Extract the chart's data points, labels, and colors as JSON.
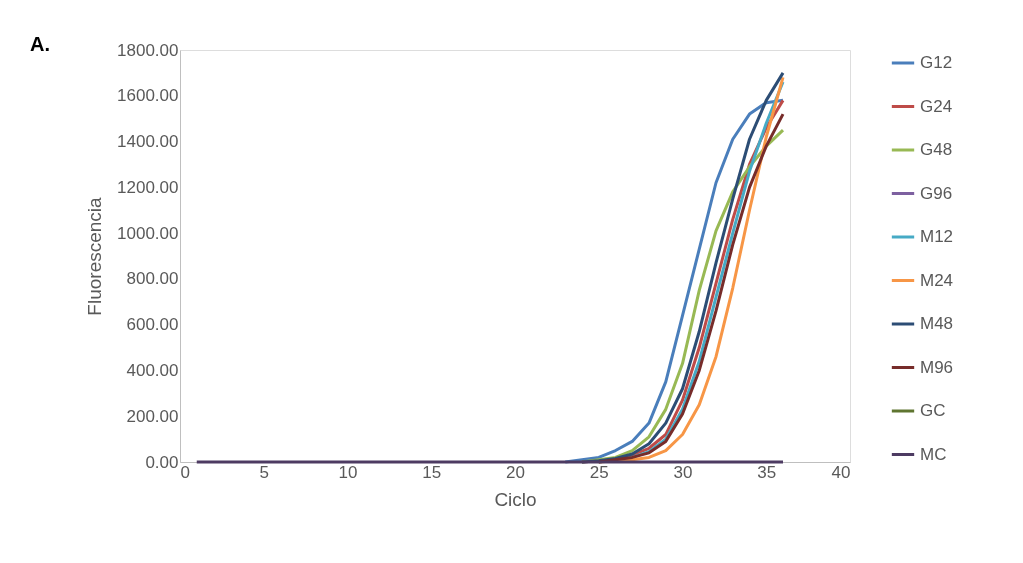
{
  "chart_data": {
    "type": "line",
    "xlabel": "Ciclo",
    "ylabel": "Fluorescencia",
    "annotations": [
      "A."
    ],
    "x": [
      1,
      2,
      3,
      4,
      5,
      6,
      7,
      8,
      9,
      10,
      11,
      12,
      13,
      14,
      15,
      16,
      17,
      18,
      19,
      20,
      21,
      22,
      23,
      24,
      25,
      26,
      27,
      28,
      29,
      30,
      31,
      32,
      33,
      34,
      35,
      36
    ],
    "series": [
      {
        "name": "G12",
        "color": "#4a7ebb",
        "values": [
          null,
          null,
          null,
          null,
          null,
          null,
          null,
          null,
          null,
          null,
          null,
          null,
          null,
          null,
          null,
          null,
          null,
          null,
          null,
          null,
          null,
          null,
          0,
          10,
          20,
          50,
          90,
          170,
          350,
          640,
          930,
          1220,
          1410,
          1520,
          1570,
          1580
        ]
      },
      {
        "name": "G24",
        "color": "#be4b48",
        "values": [
          null,
          null,
          null,
          null,
          null,
          null,
          null,
          null,
          null,
          null,
          null,
          null,
          null,
          null,
          null,
          null,
          null,
          null,
          null,
          null,
          null,
          null,
          null,
          0,
          5,
          15,
          30,
          60,
          120,
          270,
          500,
          780,
          1060,
          1300,
          1460,
          1580
        ]
      },
      {
        "name": "G48",
        "color": "#98b954",
        "values": [
          null,
          null,
          null,
          null,
          null,
          null,
          null,
          null,
          null,
          null,
          null,
          null,
          null,
          null,
          null,
          null,
          null,
          null,
          null,
          null,
          null,
          null,
          null,
          0,
          10,
          20,
          50,
          110,
          230,
          430,
          750,
          1010,
          1180,
          1290,
          1380,
          1450
        ]
      },
      {
        "name": "G96",
        "color": "#7d60a0",
        "values": [
          null,
          null,
          null,
          null,
          null,
          null,
          null,
          null,
          null,
          null,
          null,
          null,
          null,
          null,
          null,
          null,
          null,
          null,
          null,
          null,
          null,
          null,
          null,
          null,
          null,
          null,
          null,
          null,
          null,
          null,
          null,
          null,
          null,
          null,
          null,
          null
        ]
      },
      {
        "name": "M12",
        "color": "#46aac5",
        "values": [
          null,
          null,
          null,
          null,
          null,
          null,
          null,
          null,
          null,
          null,
          null,
          null,
          null,
          null,
          null,
          null,
          null,
          null,
          null,
          null,
          null,
          null,
          null,
          null,
          0,
          10,
          20,
          45,
          100,
          230,
          440,
          720,
          1000,
          1270,
          1480,
          1660
        ]
      },
      {
        "name": "M24",
        "color": "#f79646",
        "values": [
          null,
          null,
          null,
          null,
          null,
          null,
          null,
          null,
          null,
          null,
          null,
          null,
          null,
          null,
          null,
          null,
          null,
          null,
          null,
          null,
          null,
          null,
          null,
          null,
          0,
          5,
          10,
          20,
          50,
          120,
          250,
          460,
          760,
          1100,
          1420,
          1680
        ]
      },
      {
        "name": "M48",
        "color": "#2c4d75",
        "values": [
          null,
          null,
          null,
          null,
          null,
          null,
          null,
          null,
          null,
          null,
          null,
          null,
          null,
          null,
          null,
          null,
          null,
          null,
          null,
          null,
          null,
          null,
          null,
          0,
          5,
          15,
          35,
          80,
          170,
          320,
          570,
          870,
          1150,
          1410,
          1580,
          1700
        ]
      },
      {
        "name": "M96",
        "color": "#772c2a",
        "values": [
          null,
          null,
          null,
          null,
          null,
          null,
          null,
          null,
          null,
          null,
          null,
          null,
          null,
          null,
          null,
          null,
          null,
          null,
          null,
          null,
          null,
          null,
          null,
          null,
          0,
          10,
          20,
          40,
          90,
          210,
          400,
          660,
          950,
          1200,
          1380,
          1520
        ]
      },
      {
        "name": "GC",
        "color": "#5f7530",
        "values": [
          null,
          null,
          null,
          null,
          null,
          null,
          null,
          null,
          null,
          null,
          null,
          null,
          null,
          null,
          null,
          null,
          null,
          null,
          null,
          null,
          null,
          null,
          null,
          null,
          null,
          null,
          null,
          null,
          null,
          null,
          null,
          null,
          null,
          null,
          null,
          null
        ]
      },
      {
        "name": "MC",
        "color": "#4d3b62",
        "values": [
          0,
          0,
          0,
          0,
          0,
          0,
          0,
          0,
          0,
          0,
          0,
          0,
          0,
          0,
          0,
          0,
          0,
          0,
          0,
          0,
          0,
          0,
          0,
          0,
          0,
          0,
          0,
          0,
          0,
          0,
          0,
          0,
          0,
          0,
          0,
          0
        ]
      }
    ],
    "xlim": [
      0,
      40
    ],
    "xticks": [
      0,
      5,
      10,
      15,
      20,
      25,
      30,
      35,
      40
    ],
    "ylim": [
      0,
      1800
    ],
    "yticks": [
      {
        "value": 0,
        "label": "0.00"
      },
      {
        "value": 200,
        "label": "200.00"
      },
      {
        "value": 400,
        "label": "400.00"
      },
      {
        "value": 600,
        "label": "600.00"
      },
      {
        "value": 800,
        "label": "800.00"
      },
      {
        "value": 1000,
        "label": "1000.00"
      },
      {
        "value": 1200,
        "label": "1200.00"
      },
      {
        "value": 1400,
        "label": "1400.00"
      },
      {
        "value": 1600,
        "label": "1600.00"
      },
      {
        "value": 1800,
        "label": "1800.00"
      }
    ],
    "grid": false,
    "legend": "right",
    "marker": "none",
    "line_style": "solid"
  }
}
